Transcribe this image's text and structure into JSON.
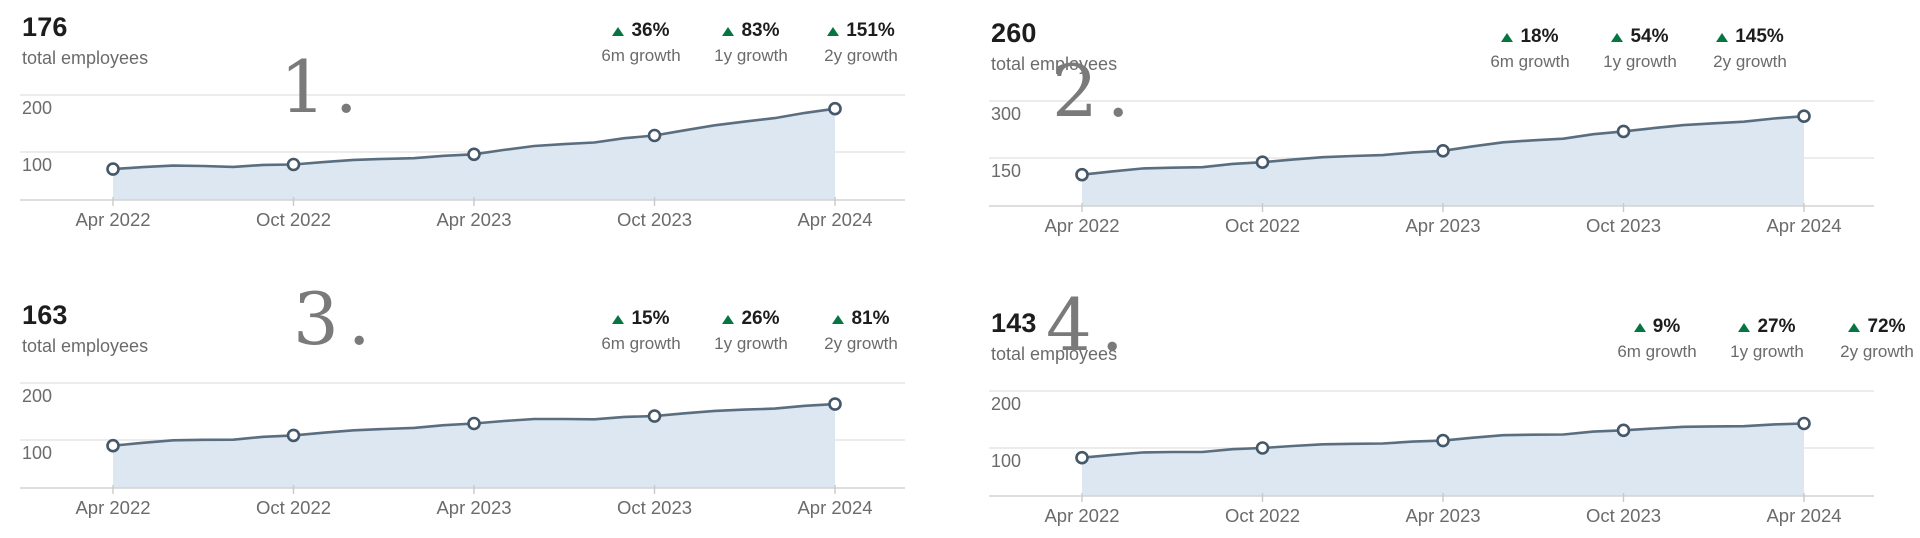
{
  "colors": {
    "background": "#ffffff",
    "growth_arrow_green": "#057642",
    "line": "#5a6e80",
    "area_fill": "#dde7f1",
    "marker_fill": "#ffffff",
    "marker_stroke": "#44586a",
    "gridline": "#e6e6e6",
    "axis_line": "#d4d4d4",
    "tick_mark": "#c9c9c9",
    "text_primary": "#1d1d1d",
    "text_secondary": "#6b6b6b",
    "annotation_number": "#7a7a7a"
  },
  "chart_data": [
    {
      "type": "area",
      "overlay_label": "1.",
      "total": "176",
      "total_label": "total employees",
      "stats": [
        {
          "value": "36%",
          "label": "6m growth",
          "direction": "up"
        },
        {
          "value": "83%",
          "label": "1y growth",
          "direction": "up"
        },
        {
          "value": "151%",
          "label": "2y growth",
          "direction": "up"
        }
      ],
      "x": [
        "Apr 2022",
        "Oct 2022",
        "Apr 2023",
        "Oct 2023",
        "Apr 2024"
      ],
      "values": [
        70,
        78,
        96,
        129,
        176
      ],
      "y_ticks": [
        200,
        100
      ],
      "legend": "none",
      "grid": "horizontal"
    },
    {
      "type": "area",
      "overlay_label": "2.",
      "total": "260",
      "total_label": "total employees",
      "stats": [
        {
          "value": "18%",
          "label": "6m growth",
          "direction": "up"
        },
        {
          "value": "54%",
          "label": "1y growth",
          "direction": "up"
        },
        {
          "value": "145%",
          "label": "2y growth",
          "direction": "up"
        }
      ],
      "x": [
        "Apr 2022",
        "Oct 2022",
        "Apr 2023",
        "Oct 2023",
        "Apr 2024"
      ],
      "values": [
        106,
        139,
        169,
        220,
        260
      ],
      "y_ticks": [
        300,
        150
      ],
      "legend": "none",
      "grid": "horizontal"
    },
    {
      "type": "area",
      "overlay_label": "3.",
      "total": "163",
      "total_label": "total employees",
      "stats": [
        {
          "value": "15%",
          "label": "6m growth",
          "direction": "up"
        },
        {
          "value": "26%",
          "label": "1y growth",
          "direction": "up"
        },
        {
          "value": "81%",
          "label": "2y growth",
          "direction": "up"
        }
      ],
      "x": [
        "Apr 2022",
        "Oct 2022",
        "Apr 2023",
        "Oct 2023",
        "Apr 2024"
      ],
      "values": [
        90,
        108,
        129,
        142,
        163
      ],
      "y_ticks": [
        200,
        100
      ],
      "legend": "none",
      "grid": "horizontal"
    },
    {
      "type": "area",
      "overlay_label": "4.",
      "total": "143",
      "total_label": "total employees",
      "stats": [
        {
          "value": "9%",
          "label": "6m growth",
          "direction": "up"
        },
        {
          "value": "27%",
          "label": "1y growth",
          "direction": "up"
        },
        {
          "value": "72%",
          "label": "2y growth",
          "direction": "up"
        }
      ],
      "x": [
        "Apr 2022",
        "Oct 2022",
        "Apr 2023",
        "Oct 2023",
        "Apr 2024"
      ],
      "values": [
        83,
        100,
        113,
        131,
        143
      ],
      "y_ticks": [
        200,
        100
      ],
      "legend": "none",
      "grid": "horizontal"
    }
  ]
}
